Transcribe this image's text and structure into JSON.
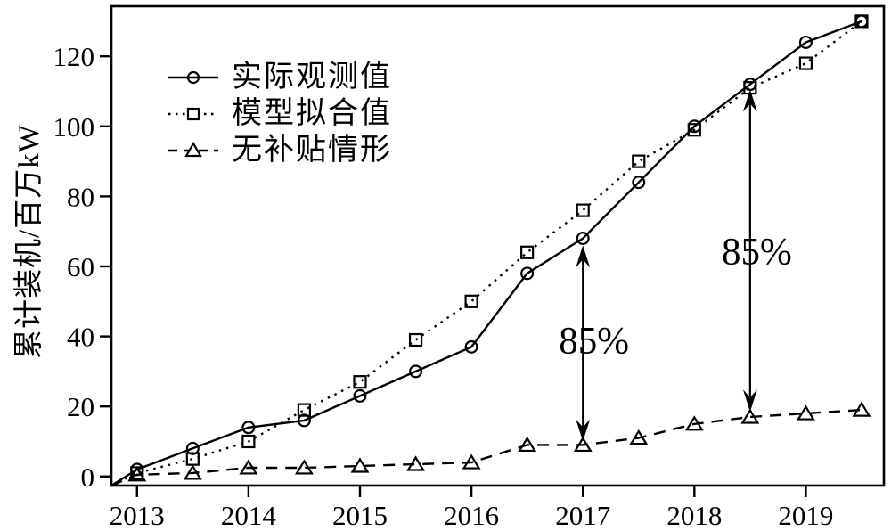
{
  "figure": {
    "background_color": "#ffffff",
    "ink_color": "#000000"
  },
  "chart_data": {
    "type": "line",
    "title": "",
    "xlabel": "",
    "ylabel": "累计装机/百万kW",
    "x": [
      2013,
      2013.5,
      2014,
      2014.5,
      2015,
      2015.5,
      2016,
      2016.5,
      2017,
      2017.5,
      2018,
      2018.5,
      2019,
      2019.5
    ],
    "series": [
      {
        "name": "实际观测值",
        "line_style": "solid",
        "marker": "circle",
        "values": [
          2,
          8,
          14,
          16,
          23,
          30,
          37,
          58,
          68,
          84,
          100,
          112,
          124,
          130
        ]
      },
      {
        "name": "模型拟合值",
        "line_style": "dotted",
        "marker": "square",
        "values": [
          1,
          5,
          10,
          19,
          27,
          39,
          50,
          64,
          76,
          90,
          99,
          111,
          118,
          130
        ]
      },
      {
        "name": "无补贴情形",
        "line_style": "dashed",
        "marker": "triangle",
        "values": [
          0.5,
          1,
          2.5,
          2.5,
          3,
          3.5,
          4,
          9,
          9,
          11,
          15,
          17,
          18,
          19
        ]
      }
    ],
    "x_ticks": [
      2013,
      2014,
      2015,
      2016,
      2017,
      2018,
      2019
    ],
    "y_ticks": [
      0,
      20,
      40,
      60,
      80,
      100,
      120
    ],
    "xlim": [
      2012.77,
      2019.7
    ],
    "ylim": [
      -2.6,
      134.3
    ],
    "grid": false,
    "legend_position": "upper-left",
    "series_start_at_plot_corner": true,
    "annotations": [
      {
        "label": "85%",
        "x": 2017,
        "y_from": 10,
        "y_to": 66,
        "label_x": 2017.1,
        "label_y": 39
      },
      {
        "label": "85%",
        "x": 2018.5,
        "y_from": 18.5,
        "y_to": 110.5,
        "label_x": 2018.56,
        "label_y": 64.5
      }
    ]
  }
}
